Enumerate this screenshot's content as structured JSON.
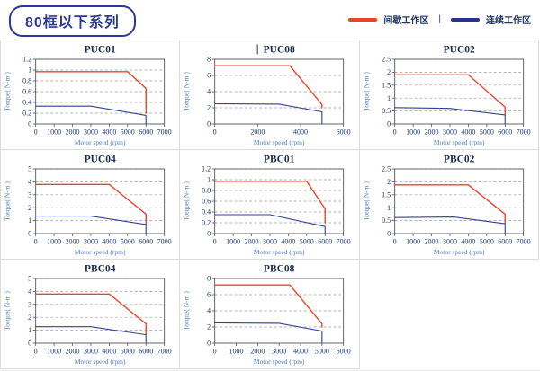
{
  "header": {
    "title": "80框以下系列"
  },
  "legend": {
    "separator": "|",
    "items": [
      {
        "label": "间歇工作区",
        "color": "#e8452c"
      },
      {
        "label": "连续工作区",
        "color": "#27348b"
      }
    ]
  },
  "colors": {
    "intermittent_line": "#e8452c",
    "continuous_line": "#34418f",
    "badge_border": "#2b3990",
    "grid_border": "#dcdcdc"
  },
  "chart_data": [
    {
      "type": "line",
      "title": "PUC01",
      "xlabel": "Motor speed (rpm)",
      "ylabel": "Torque( N-m )",
      "xlim": [
        0,
        7000
      ],
      "ylim": [
        0,
        1.2
      ],
      "xticks": [
        0,
        1000,
        2000,
        3000,
        4000,
        5000,
        6000,
        7000
      ],
      "yticks": [
        0,
        0.2,
        0.4,
        0.6,
        0.8,
        1,
        1.2
      ],
      "grid": "dashed-horizontal",
      "legend_position": "none",
      "series": [
        {
          "name": "间歇工作区",
          "color": "#e8452c",
          "points": [
            [
              0,
              0.97
            ],
            [
              5000,
              0.97
            ],
            [
              6000,
              0.66
            ],
            [
              6000,
              0.2
            ]
          ]
        },
        {
          "name": "连续工作区",
          "color": "#34418f",
          "points": [
            [
              0,
              0.33
            ],
            [
              3000,
              0.33
            ],
            [
              6000,
              0.16
            ],
            [
              6000,
              0
            ]
          ]
        }
      ]
    },
    {
      "type": "line",
      "title": "PUC08",
      "caret_before_title": true,
      "xlabel": "Motor speed (rpm)",
      "ylabel": "Torque( N-m )",
      "xlim": [
        0,
        6000
      ],
      "ylim": [
        0,
        8
      ],
      "xticks": [
        0,
        2000,
        4000,
        6000
      ],
      "yticks": [
        0,
        2,
        4,
        6,
        8
      ],
      "grid": "dashed-horizontal",
      "legend_position": "none",
      "series": [
        {
          "name": "间歇工作区",
          "color": "#e8452c",
          "points": [
            [
              0,
              7.2
            ],
            [
              3500,
              7.2
            ],
            [
              5000,
              2.4
            ],
            [
              5000,
              2.0
            ]
          ]
        },
        {
          "name": "连续工作区",
          "color": "#34418f",
          "points": [
            [
              0,
              2.5
            ],
            [
              3000,
              2.45
            ],
            [
              5000,
              1.5
            ],
            [
              5000,
              0
            ]
          ]
        }
      ]
    },
    {
      "type": "line",
      "title": "PUC02",
      "xlabel": "Motor speed (rpm)",
      "ylabel": "Torque( N-m )",
      "xlim": [
        0,
        7000
      ],
      "ylim": [
        0,
        2.5
      ],
      "xticks": [
        0,
        1000,
        2000,
        3000,
        4000,
        5000,
        6000,
        7000
      ],
      "yticks": [
        0,
        0.5,
        1,
        1.5,
        2,
        2.5
      ],
      "grid": "dashed-horizontal",
      "legend_position": "none",
      "series": [
        {
          "name": "间歇工作区",
          "color": "#e8452c",
          "points": [
            [
              0,
              1.9
            ],
            [
              4000,
              1.9
            ],
            [
              6000,
              0.65
            ],
            [
              6000,
              0.38
            ]
          ]
        },
        {
          "name": "连续工作区",
          "color": "#34418f",
          "points": [
            [
              0,
              0.63
            ],
            [
              3000,
              0.6
            ],
            [
              6000,
              0.35
            ],
            [
              6000,
              0
            ]
          ]
        }
      ]
    },
    {
      "type": "line",
      "title": "PUC04",
      "xlabel": "Motor speed (rpm)",
      "ylabel": "Torque( N-m )",
      "xlim": [
        0,
        7000
      ],
      "ylim": [
        0,
        5
      ],
      "xticks": [
        0,
        1000,
        2000,
        3000,
        4000,
        5000,
        6000,
        7000
      ],
      "yticks": [
        0,
        1,
        2,
        3,
        4,
        5
      ],
      "grid": "dashed-horizontal",
      "legend_position": "none",
      "series": [
        {
          "name": "间歇工作区",
          "color": "#e8452c",
          "points": [
            [
              0,
              3.8
            ],
            [
              4000,
              3.8
            ],
            [
              6000,
              1.5
            ],
            [
              6000,
              0.72
            ]
          ]
        },
        {
          "name": "连续工作区",
          "color": "#34418f",
          "points": [
            [
              0,
              1.35
            ],
            [
              3000,
              1.35
            ],
            [
              6000,
              0.7
            ],
            [
              6000,
              0
            ]
          ]
        }
      ]
    },
    {
      "type": "line",
      "title": "PBC01",
      "xlabel": "Motor speed (rpm)",
      "ylabel": "Torque( N-m )",
      "xlim": [
        0,
        7000
      ],
      "ylim": [
        0,
        1.2
      ],
      "xticks": [
        0,
        1000,
        2000,
        3000,
        4000,
        5000,
        6000,
        7000
      ],
      "yticks": [
        0,
        0.2,
        0.4,
        0.6,
        0.8,
        1,
        1.2
      ],
      "grid": "dashed-horizontal",
      "legend_position": "none",
      "series": [
        {
          "name": "间歇工作区",
          "color": "#e8452c",
          "points": [
            [
              0,
              0.97
            ],
            [
              5000,
              0.97
            ],
            [
              6000,
              0.46
            ],
            [
              6000,
              0.2
            ]
          ]
        },
        {
          "name": "连续工作区",
          "color": "#34418f",
          "points": [
            [
              0,
              0.35
            ],
            [
              3000,
              0.35
            ],
            [
              6000,
              0.13
            ],
            [
              6000,
              0
            ]
          ]
        }
      ]
    },
    {
      "type": "line",
      "title": "PBC02",
      "xlabel": "Motor speed (rpm)",
      "ylabel": "Torque( N-m )",
      "xlim": [
        0,
        7000
      ],
      "ylim": [
        0,
        2.5
      ],
      "xticks": [
        0,
        1000,
        2000,
        3000,
        4000,
        5000,
        6000,
        7000
      ],
      "yticks": [
        0,
        0.5,
        1,
        1.5,
        2,
        2.5
      ],
      "grid": "dashed-horizontal",
      "legend_position": "none",
      "series": [
        {
          "name": "间歇工作区",
          "color": "#e8452c",
          "points": [
            [
              0,
              1.88
            ],
            [
              4000,
              1.88
            ],
            [
              6000,
              0.75
            ],
            [
              6000,
              0.4
            ]
          ]
        },
        {
          "name": "连续工作区",
          "color": "#34418f",
          "points": [
            [
              0,
              0.62
            ],
            [
              3200,
              0.64
            ],
            [
              6000,
              0.38
            ],
            [
              6000,
              0
            ]
          ]
        }
      ]
    },
    {
      "type": "line",
      "title": "PBC04",
      "xlabel": "Motor speed (rpm)",
      "ylabel": "Torque( N-m )",
      "xlim": [
        0,
        7000
      ],
      "ylim": [
        0,
        5
      ],
      "xticks": [
        0,
        1000,
        2000,
        3000,
        4000,
        5000,
        6000,
        7000
      ],
      "yticks": [
        0,
        1,
        2,
        3,
        4,
        5
      ],
      "grid": "dashed-horizontal",
      "legend_position": "none",
      "series": [
        {
          "name": "间歇工作区",
          "color": "#e8452c",
          "points": [
            [
              0,
              3.8
            ],
            [
              4000,
              3.8
            ],
            [
              6000,
              1.5
            ],
            [
              6000,
              0.68
            ]
          ]
        },
        {
          "name": "连续工作区",
          "color": "#34418f",
          "points": [
            [
              0,
              1.27
            ],
            [
              3000,
              1.27
            ],
            [
              6000,
              0.65
            ],
            [
              6000,
              0
            ]
          ]
        }
      ]
    },
    {
      "type": "line",
      "title": "PBC08",
      "xlabel": "Motor speed (rpm)",
      "ylabel": "Torque( N-m )",
      "xlim": [
        0,
        6000
      ],
      "ylim": [
        0,
        8
      ],
      "xticks": [
        0,
        1000,
        2000,
        3000,
        4000,
        5000,
        6000
      ],
      "yticks": [
        0,
        2,
        4,
        6,
        8
      ],
      "grid": "dashed-horizontal",
      "legend_position": "none",
      "series": [
        {
          "name": "间歇工作区",
          "color": "#e8452c",
          "points": [
            [
              0,
              7.2
            ],
            [
              3500,
              7.2
            ],
            [
              5000,
              2.4
            ],
            [
              5000,
              2.0
            ]
          ]
        },
        {
          "name": "连续工作区",
          "color": "#34418f",
          "points": [
            [
              0,
              2.5
            ],
            [
              3000,
              2.45
            ],
            [
              5000,
              1.5
            ],
            [
              5000,
              0
            ]
          ]
        }
      ]
    }
  ]
}
